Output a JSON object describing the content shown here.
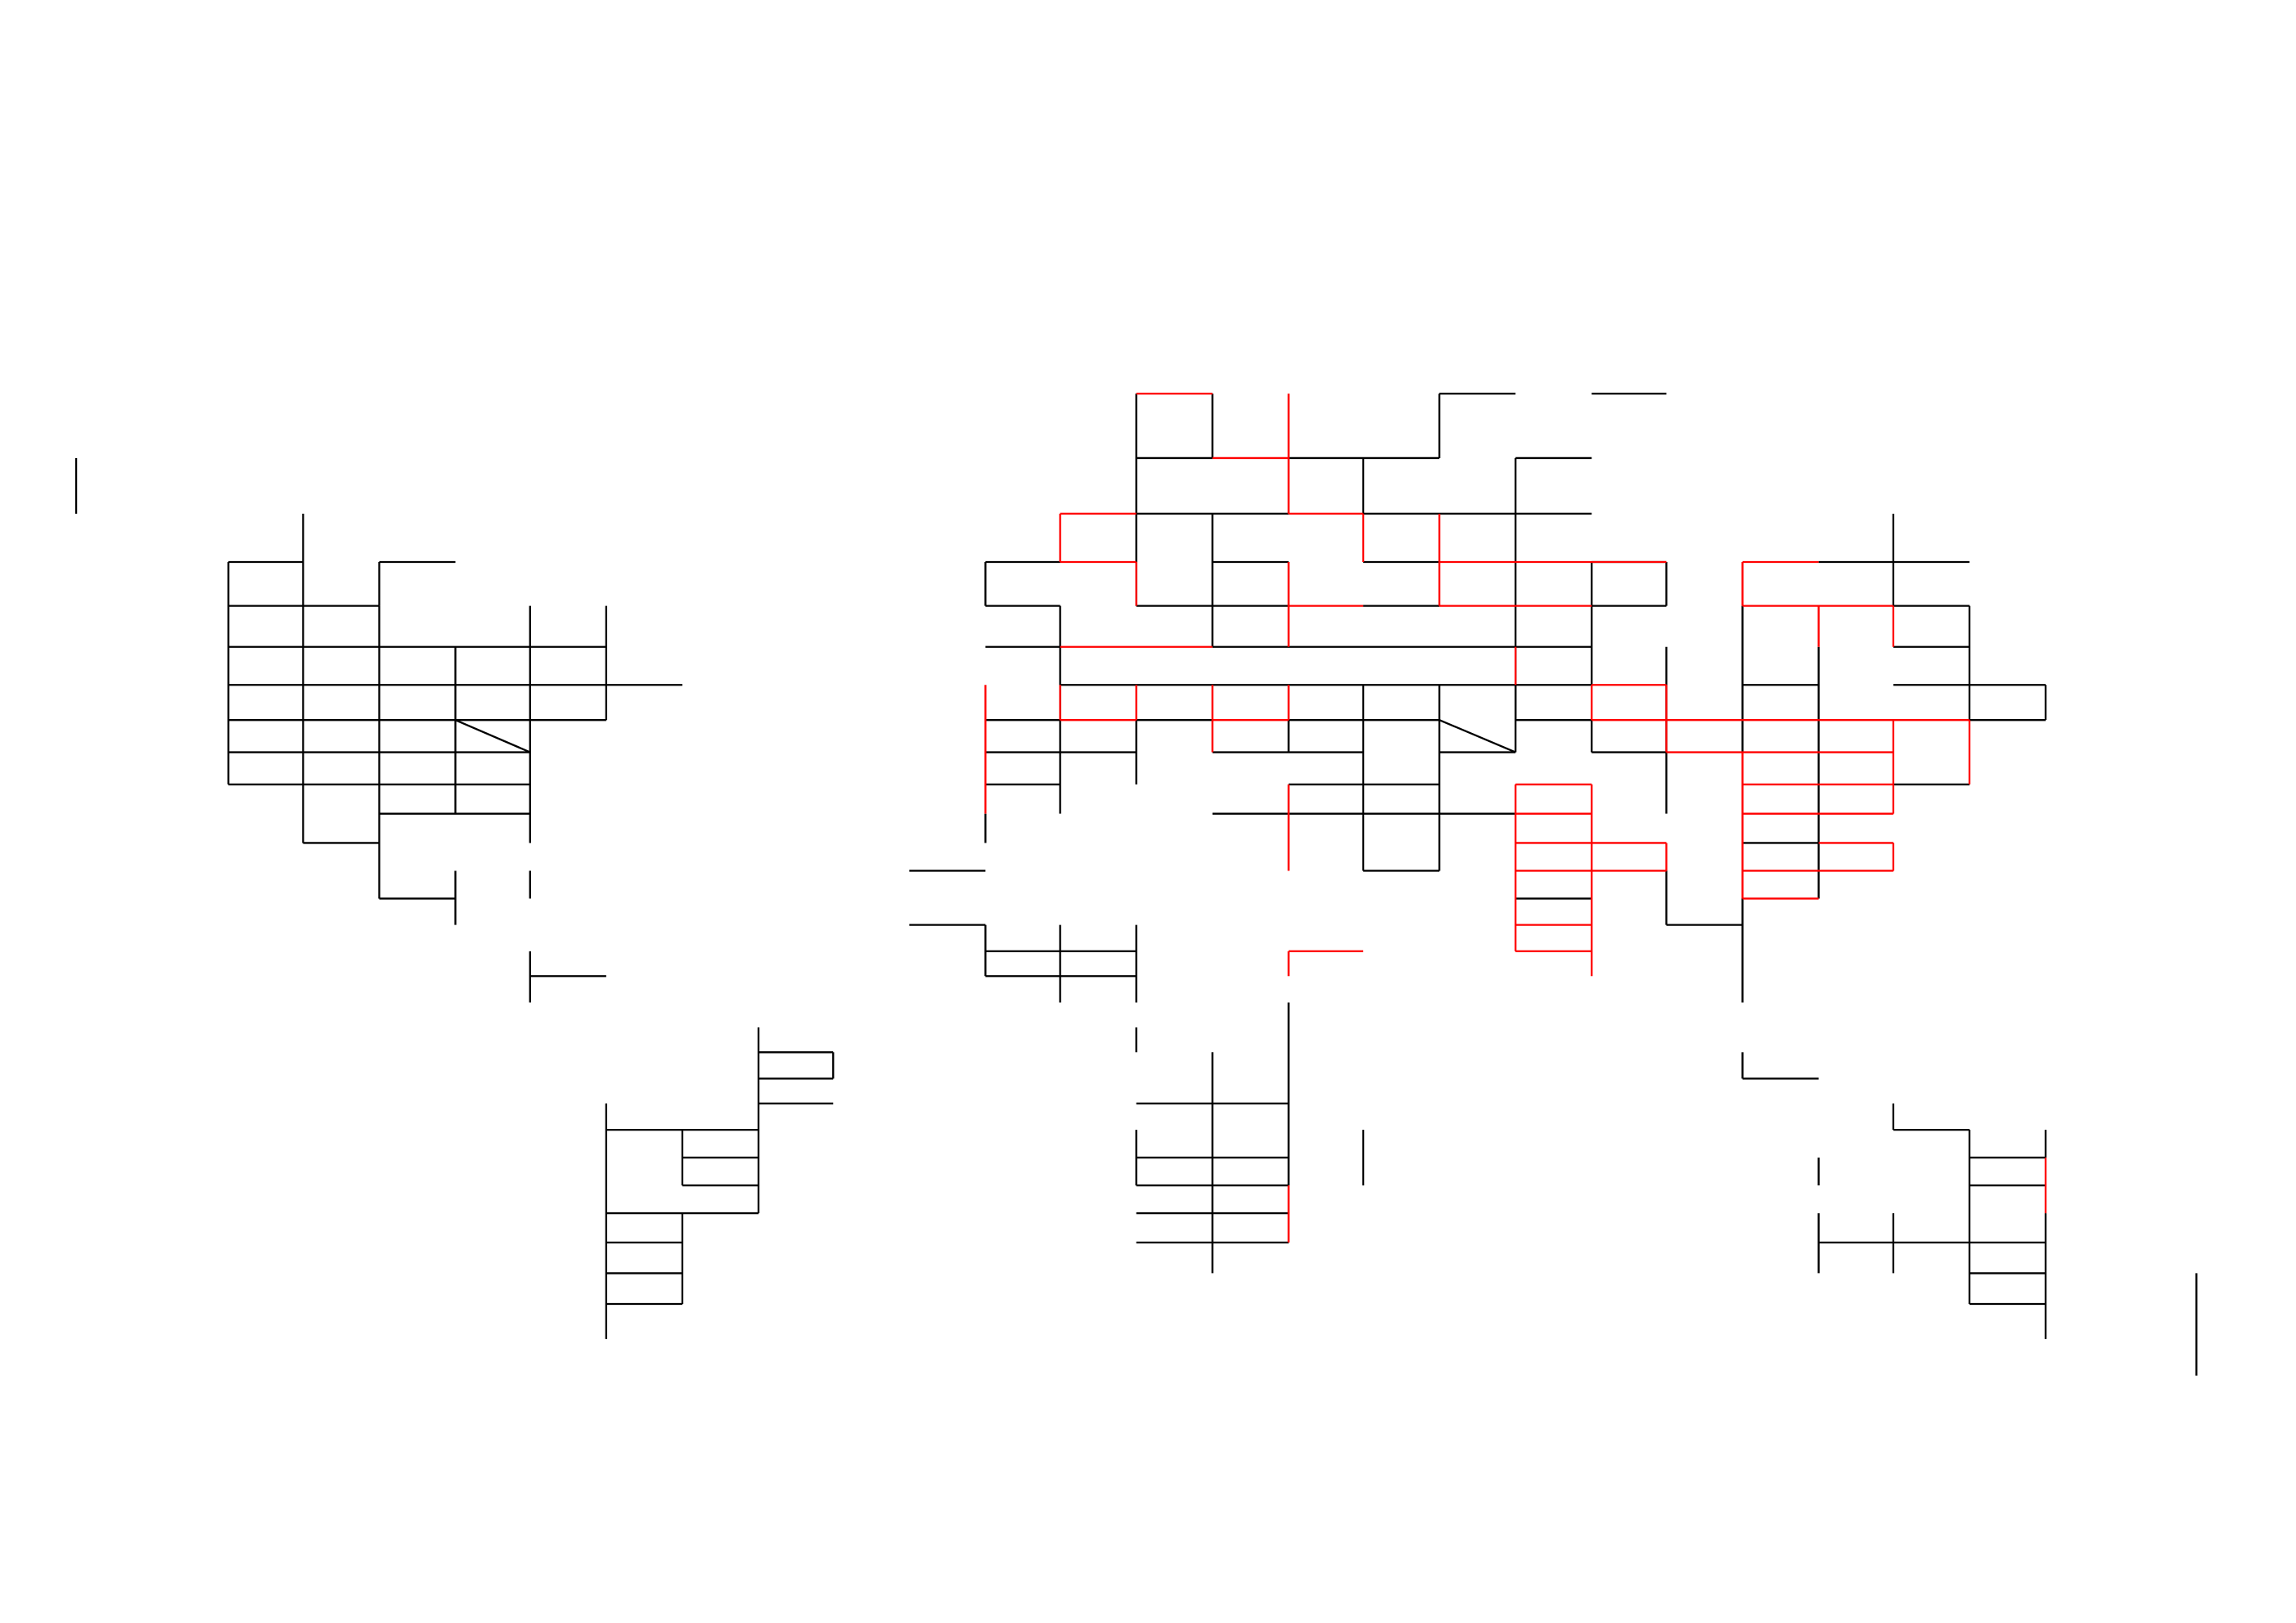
{
  "colors": {
    "background": "#ffffff",
    "grid_line": "#000000",
    "highlight_line": "#ff0000"
  }
}
